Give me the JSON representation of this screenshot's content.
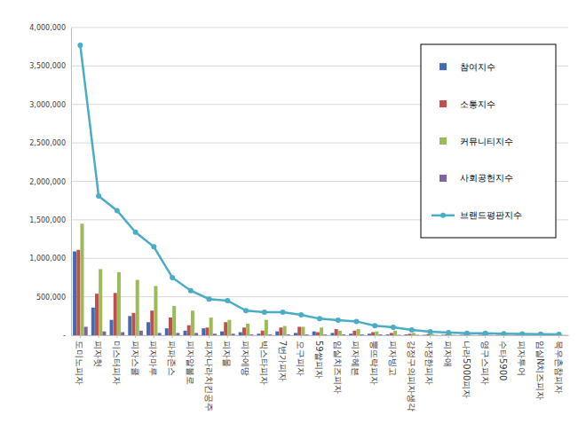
{
  "chart_data": {
    "type": "bar",
    "categories": [
      "도미노피자",
      "피자헛",
      "미스터피자",
      "피자스쿨",
      "피자마루",
      "파파존스",
      "피자알볼로",
      "피자나라치킨공주",
      "피자몰",
      "피자에땅",
      "빅스타피자",
      "7번가피자",
      "오구피자",
      "59쌀피자",
      "임실치즈피자",
      "피자헤븐",
      "뽕뜨락피자",
      "피자빙고",
      "강정구의피자생각",
      "자정한피자",
      "피자애",
      "나라5000피자",
      "영구스피자",
      "수타5900",
      "피자투어",
      "임실N치즈피자",
      "목우촌참피자"
    ],
    "series": [
      {
        "name": "참여지수",
        "type": "bar",
        "color": "#3f6cb4",
        "values": [
          1090000,
          360000,
          200000,
          250000,
          170000,
          90000,
          60000,
          90000,
          50000,
          40000,
          20000,
          50000,
          30000,
          50000,
          30000,
          20000,
          20000,
          10000,
          10000,
          5000,
          5000,
          5000,
          5000,
          5000,
          5000,
          3000,
          3000
        ]
      },
      {
        "name": "소통지수",
        "type": "bar",
        "color": "#c0504d",
        "values": [
          1110000,
          540000,
          550000,
          290000,
          320000,
          230000,
          130000,
          100000,
          170000,
          100000,
          60000,
          100000,
          110000,
          40000,
          80000,
          60000,
          40000,
          30000,
          20000,
          15000,
          10000,
          8000,
          8000,
          5000,
          5000,
          5000,
          3000
        ]
      },
      {
        "name": "커뮤니티지수",
        "type": "bar",
        "color": "#9bbb59",
        "values": [
          1450000,
          860000,
          820000,
          720000,
          640000,
          380000,
          320000,
          230000,
          200000,
          150000,
          200000,
          120000,
          110000,
          100000,
          60000,
          80000,
          50000,
          60000,
          30000,
          20000,
          15000,
          10000,
          10000,
          8000,
          6000,
          5000,
          5000
        ]
      },
      {
        "name": "사회공헌지수",
        "type": "bar",
        "color": "#8064a2",
        "values": [
          110000,
          50000,
          40000,
          60000,
          30000,
          30000,
          30000,
          20000,
          20000,
          10000,
          10000,
          10000,
          10000,
          10000,
          10000,
          10000,
          10000,
          5000,
          5000,
          3000,
          3000,
          2000,
          2000,
          2000,
          2000,
          2000,
          2000
        ]
      },
      {
        "name": "브랜드평판지수",
        "type": "line",
        "color": "#4bacc6",
        "marker": "circle",
        "values": [
          3770000,
          1810000,
          1620000,
          1340000,
          1150000,
          750000,
          580000,
          470000,
          450000,
          320000,
          300000,
          300000,
          265000,
          215000,
          195000,
          180000,
          125000,
          105000,
          70000,
          45000,
          35000,
          25000,
          25000,
          20000,
          18000,
          15000,
          12000
        ]
      }
    ],
    "ylim": [
      0,
      4000000
    ],
    "yticks": [
      {
        "value": 0,
        "label": "-"
      },
      {
        "value": 500000,
        "label": "500,000"
      },
      {
        "value": 1000000,
        "label": "1,000,000"
      },
      {
        "value": 1500000,
        "label": "1,500,000"
      },
      {
        "value": 2000000,
        "label": "2,000,000"
      },
      {
        "value": 2500000,
        "label": "2,500,000"
      },
      {
        "value": 3000000,
        "label": "3,000,000"
      },
      {
        "value": 3500000,
        "label": "3,500,000"
      },
      {
        "value": 4000000,
        "label": "4,000,000"
      }
    ],
    "grid": true,
    "legend": "upper right"
  }
}
